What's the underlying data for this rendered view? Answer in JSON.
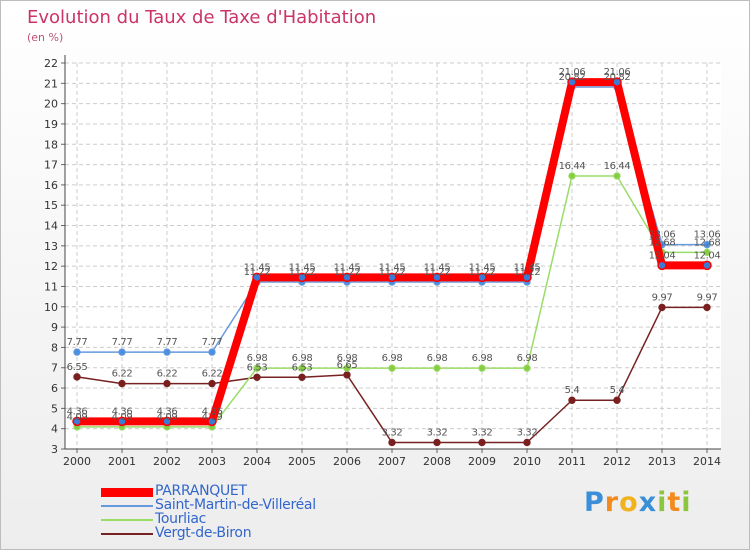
{
  "chart_data": {
    "type": "line",
    "title": "Evolution du Taux de Taxe d'Habitation",
    "unit_label": "(en %)",
    "categories": [
      "2000",
      "2001",
      "2002",
      "2003",
      "2004",
      "2005",
      "2006",
      "2007",
      "2008",
      "2009",
      "2010",
      "2011",
      "2012",
      "2013",
      "2014"
    ],
    "ylim": [
      3,
      22
    ],
    "yticks": [
      3,
      4,
      5,
      6,
      7,
      8,
      9,
      10,
      11,
      12,
      13,
      14,
      15,
      16,
      17,
      18,
      19,
      20,
      21,
      22
    ],
    "grid": true,
    "legend_position": "bottom-left",
    "series": [
      {
        "name": "PARRANQUET",
        "color": "#ff0000",
        "values": [
          4.36,
          4.36,
          4.36,
          4.36,
          11.45,
          11.45,
          11.45,
          11.45,
          11.45,
          11.45,
          11.45,
          21.06,
          21.06,
          12.04,
          12.04
        ],
        "labels": [
          "4.36",
          "4.36",
          "4.36",
          "4.36",
          "11.45",
          "11.45",
          "11.45",
          "11.45",
          "11.45",
          "11.45",
          "11.45",
          "21.06",
          "21.06",
          "12.04",
          "12.04"
        ]
      },
      {
        "name": "Saint-Martin-de-Villeréal",
        "color": "#6699dd",
        "values": [
          7.77,
          7.77,
          7.77,
          7.77,
          11.22,
          11.22,
          11.22,
          11.22,
          11.22,
          11.22,
          11.22,
          20.82,
          20.82,
          13.06,
          13.06
        ],
        "labels": [
          "7.77",
          "7.77",
          "7.77",
          "7.77",
          "11.22",
          "11.22",
          "11.22",
          "11.22",
          "11.22",
          "11.22",
          "11.22",
          "20.82",
          "20.82",
          "13.06",
          "13.06"
        ]
      },
      {
        "name": "Tourliac",
        "color": "#99dd66",
        "values": [
          4.09,
          4.09,
          4.09,
          4.09,
          6.98,
          6.98,
          6.98,
          6.98,
          6.98,
          6.98,
          6.98,
          16.44,
          16.44,
          12.68,
          12.68
        ],
        "labels": [
          "4.09",
          "4.09",
          "4.09",
          "4.09",
          "6.98",
          "6.98",
          "6.98",
          "6.98",
          "6.98",
          "6.98",
          "6.98",
          "16.44",
          "16.44",
          "12.68",
          "12.68"
        ]
      },
      {
        "name": "Vergt-de-Biron",
        "color": "#772222",
        "values": [
          6.55,
          6.22,
          6.22,
          6.22,
          6.53,
          6.53,
          6.65,
          3.32,
          3.32,
          3.32,
          3.32,
          5.4,
          5.4,
          9.97,
          9.97
        ],
        "labels": [
          "6.55",
          "6.22",
          "6.22",
          "6.22",
          "6.53",
          "6.53",
          "6.65",
          "3.32",
          "3.32",
          "3.32",
          "3.32",
          "5.4",
          "5.4",
          "9.97",
          "9.97"
        ]
      }
    ]
  },
  "brand": {
    "letters": [
      "P",
      "r",
      "o",
      "x",
      "i",
      "t",
      "i"
    ],
    "colors": [
      "#3a8fd8",
      "#f28a1e",
      "#f2b21e",
      "#3a8fd8",
      "#8cc63f",
      "#f28a1e",
      "#8cc63f"
    ]
  }
}
